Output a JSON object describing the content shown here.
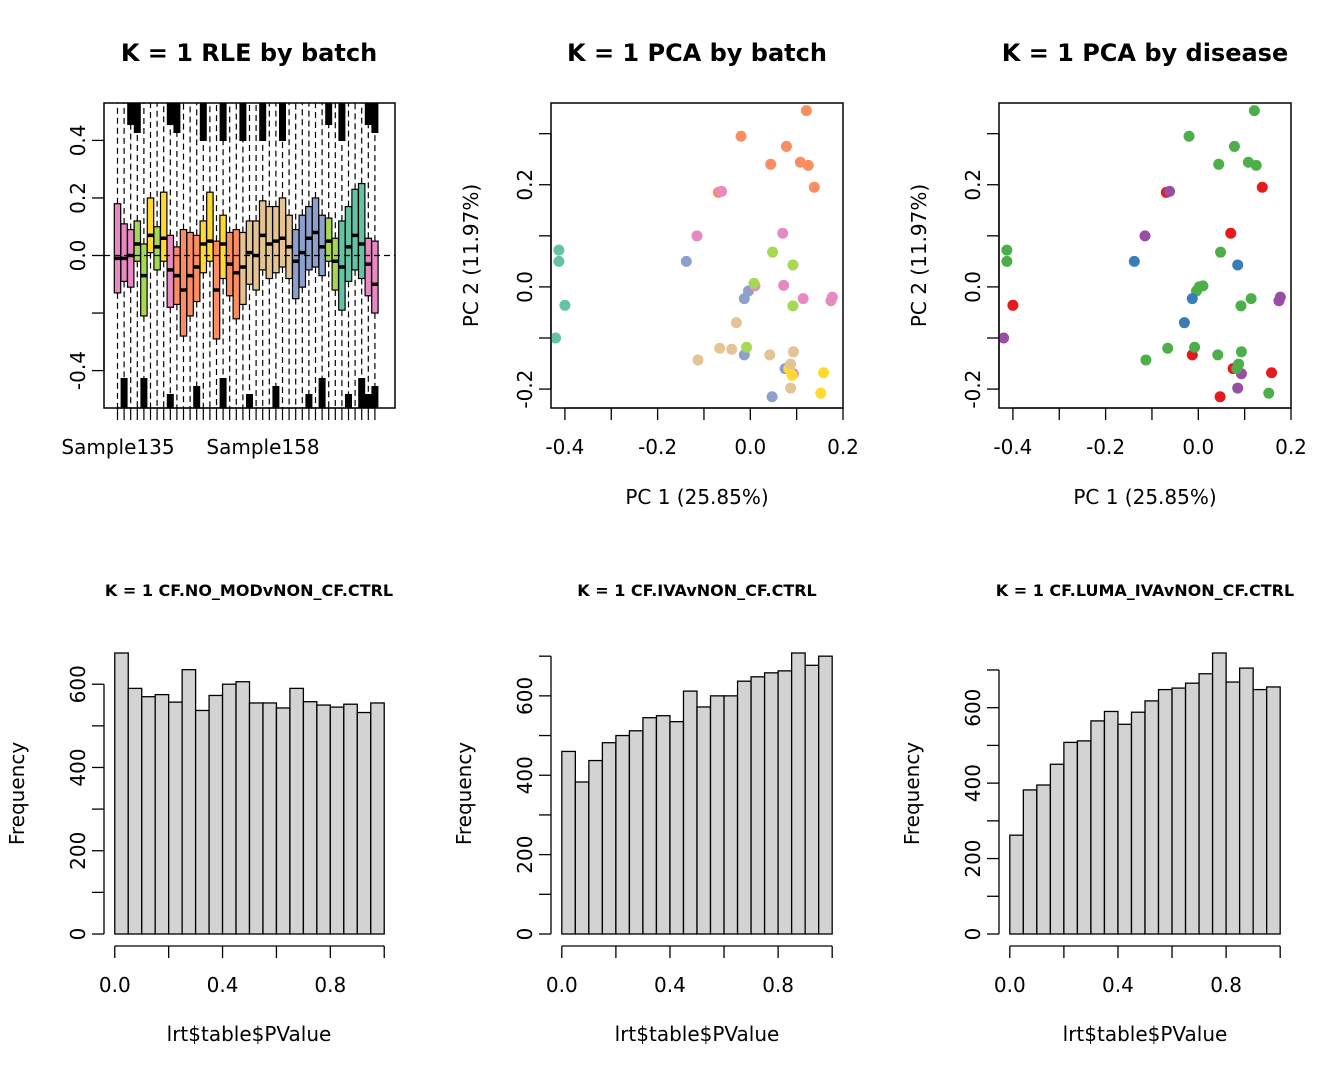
{
  "colors": {
    "set2": [
      "#66C2A5",
      "#FC8D62",
      "#8DA0CB",
      "#E78AC3",
      "#A6D854",
      "#FFD92F",
      "#E5C494"
    ],
    "set1": [
      "#E41A1C",
      "#377EB8",
      "#4DAF4A",
      "#984EA3"
    ],
    "hist_fill": "#D3D3D3"
  },
  "chart_data": [
    {
      "type": "boxplot",
      "title": "K = 1 RLE by batch",
      "xlabel": "",
      "ylabel": "",
      "ylim": [
        -0.53,
        0.53
      ],
      "yticks": [
        -0.4,
        -0.2,
        0.0,
        0.2,
        0.4
      ],
      "ytick_labels": [
        "-0.4",
        "",
        "0.0",
        "0.2",
        "0.4"
      ],
      "xtick_labels": [
        "Sample135",
        "Sample158"
      ],
      "reference_line": 0,
      "outliers_clipped": true,
      "boxes": [
        {
          "batch": 3,
          "q1": -0.13,
          "median": -0.01,
          "q3": 0.18
        },
        {
          "batch": 3,
          "q1": -0.09,
          "median": -0.01,
          "q3": 0.11
        },
        {
          "batch": 3,
          "q1": -0.11,
          "median": 0.0,
          "q3": 0.09
        },
        {
          "batch": 4,
          "q1": -0.02,
          "median": 0.04,
          "q3": 0.12
        },
        {
          "batch": 4,
          "q1": -0.21,
          "median": -0.07,
          "q3": 0.04
        },
        {
          "batch": 5,
          "q1": 0.01,
          "median": 0.07,
          "q3": 0.2
        },
        {
          "batch": 4,
          "q1": -0.05,
          "median": 0.03,
          "q3": 0.1
        },
        {
          "batch": 5,
          "q1": -0.02,
          "median": 0.06,
          "q3": 0.22
        },
        {
          "batch": 3,
          "q1": -0.18,
          "median": -0.05,
          "q3": 0.07
        },
        {
          "batch": 1,
          "q1": -0.17,
          "median": -0.07,
          "q3": 0.03
        },
        {
          "batch": 1,
          "q1": -0.28,
          "median": -0.12,
          "q3": 0.09
        },
        {
          "batch": 1,
          "q1": -0.21,
          "median": -0.07,
          "q3": 0.08
        },
        {
          "batch": 1,
          "q1": -0.16,
          "median": -0.04,
          "q3": 0.07
        },
        {
          "batch": 5,
          "q1": -0.06,
          "median": 0.04,
          "q3": 0.12
        },
        {
          "batch": 5,
          "q1": -0.02,
          "median": 0.05,
          "q3": 0.22
        },
        {
          "batch": 1,
          "q1": -0.29,
          "median": -0.12,
          "q3": 0.05
        },
        {
          "batch": 5,
          "q1": -0.08,
          "median": 0.04,
          "q3": 0.14
        },
        {
          "batch": 1,
          "q1": -0.14,
          "median": -0.03,
          "q3": 0.08
        },
        {
          "batch": 1,
          "q1": -0.22,
          "median": -0.06,
          "q3": 0.09
        },
        {
          "batch": 6,
          "q1": -0.17,
          "median": -0.04,
          "q3": 0.08
        },
        {
          "batch": 6,
          "q1": -0.1,
          "median": 0.01,
          "q3": 0.12
        },
        {
          "batch": 6,
          "q1": -0.12,
          "median": 0.0,
          "q3": 0.12
        },
        {
          "batch": 6,
          "q1": -0.05,
          "median": 0.07,
          "q3": 0.19
        },
        {
          "batch": 6,
          "q1": -0.08,
          "median": 0.04,
          "q3": 0.17
        },
        {
          "batch": 6,
          "q1": -0.06,
          "median": 0.05,
          "q3": 0.17
        },
        {
          "batch": 6,
          "q1": -0.04,
          "median": 0.06,
          "q3": 0.2
        },
        {
          "batch": 6,
          "q1": -0.08,
          "median": 0.03,
          "q3": 0.14
        },
        {
          "batch": 2,
          "q1": -0.15,
          "median": -0.02,
          "q3": 0.09
        },
        {
          "batch": 2,
          "q1": -0.11,
          "median": 0.01,
          "q3": 0.14
        },
        {
          "batch": 2,
          "q1": -0.05,
          "median": 0.06,
          "q3": 0.17
        },
        {
          "batch": 2,
          "q1": -0.04,
          "median": 0.08,
          "q3": 0.2
        },
        {
          "batch": 2,
          "q1": -0.07,
          "median": 0.03,
          "q3": 0.14
        },
        {
          "batch": 4,
          "q1": -0.02,
          "median": 0.05,
          "q3": 0.13
        },
        {
          "batch": 4,
          "q1": -0.12,
          "median": -0.02,
          "q3": 0.06
        },
        {
          "batch": 0,
          "q1": -0.19,
          "median": -0.04,
          "q3": 0.12
        },
        {
          "batch": 0,
          "q1": -0.09,
          "median": 0.03,
          "q3": 0.17
        },
        {
          "batch": 0,
          "q1": -0.05,
          "median": 0.07,
          "q3": 0.23
        },
        {
          "batch": 0,
          "q1": -0.08,
          "median": 0.04,
          "q3": 0.25
        },
        {
          "batch": 3,
          "q1": -0.14,
          "median": -0.03,
          "q3": 0.06
        },
        {
          "batch": 3,
          "q1": -0.2,
          "median": -0.1,
          "q3": 0.05
        }
      ]
    },
    {
      "type": "scatter",
      "title": "K = 1 PCA by batch",
      "xlabel": "PC 1 (25.85%)",
      "ylabel": "PC 2 (11.97%)",
      "xlim": [
        -0.43,
        0.2
      ],
      "ylim": [
        -0.237,
        0.36
      ],
      "xticks": [
        -0.4,
        -0.3,
        -0.2,
        -0.1,
        0.0,
        0.1,
        0.2
      ],
      "xtick_labels": [
        "-0.4",
        "",
        "-0.2",
        "",
        "0.0",
        "",
        "0.2"
      ],
      "yticks": [
        -0.2,
        -0.1,
        0.0,
        0.1,
        0.2,
        0.3
      ],
      "ytick_labels": [
        "-0.2",
        "",
        "0.0",
        "",
        "0.2",
        ""
      ],
      "points": [
        {
          "x": -0.413,
          "y": 0.072,
          "batch": 0
        },
        {
          "x": -0.413,
          "y": 0.05,
          "batch": 0
        },
        {
          "x": -0.4,
          "y": -0.036,
          "batch": 0
        },
        {
          "x": -0.42,
          "y": -0.1,
          "batch": 0
        },
        {
          "x": -0.02,
          "y": 0.295,
          "batch": 1
        },
        {
          "x": 0.121,
          "y": 0.345,
          "batch": 1
        },
        {
          "x": 0.078,
          "y": 0.275,
          "batch": 1
        },
        {
          "x": 0.108,
          "y": 0.244,
          "batch": 1
        },
        {
          "x": 0.125,
          "y": 0.238,
          "batch": 1
        },
        {
          "x": 0.044,
          "y": 0.24,
          "batch": 1
        },
        {
          "x": 0.138,
          "y": 0.195,
          "batch": 1
        },
        {
          "x": -0.069,
          "y": 0.185,
          "batch": 1
        },
        {
          "x": -0.138,
          "y": 0.05,
          "batch": 2
        },
        {
          "x": -0.004,
          "y": -0.008,
          "batch": 2
        },
        {
          "x": -0.013,
          "y": -0.023,
          "batch": 2
        },
        {
          "x": -0.013,
          "y": -0.133,
          "batch": 2
        },
        {
          "x": 0.075,
          "y": -0.16,
          "batch": 2
        },
        {
          "x": 0.047,
          "y": -0.215,
          "batch": 2
        },
        {
          "x": -0.062,
          "y": 0.187,
          "batch": 3
        },
        {
          "x": -0.115,
          "y": 0.1,
          "batch": 3
        },
        {
          "x": 0.07,
          "y": 0.105,
          "batch": 3
        },
        {
          "x": 0.01,
          "y": 0.002,
          "batch": 3
        },
        {
          "x": 0.072,
          "y": 0.003,
          "batch": 3
        },
        {
          "x": 0.114,
          "y": -0.023,
          "batch": 3
        },
        {
          "x": 0.177,
          "y": -0.02,
          "batch": 3
        },
        {
          "x": 0.174,
          "y": -0.027,
          "batch": 3
        },
        {
          "x": 0.093,
          "y": -0.17,
          "batch": 3
        },
        {
          "x": 0.048,
          "y": 0.068,
          "batch": 4
        },
        {
          "x": 0.092,
          "y": 0.043,
          "batch": 4
        },
        {
          "x": 0.008,
          "y": 0.007,
          "batch": 4
        },
        {
          "x": 0.092,
          "y": -0.037,
          "batch": 4
        },
        {
          "x": -0.008,
          "y": -0.118,
          "batch": 4
        },
        {
          "x": 0.158,
          "y": -0.168,
          "batch": 5
        },
        {
          "x": 0.09,
          "y": -0.173,
          "batch": 5
        },
        {
          "x": 0.152,
          "y": -0.208,
          "batch": 5
        },
        {
          "x": 0.083,
          "y": -0.16,
          "batch": 5
        },
        {
          "x": -0.03,
          "y": -0.07,
          "batch": 6
        },
        {
          "x": -0.066,
          "y": -0.12,
          "batch": 6
        },
        {
          "x": -0.04,
          "y": -0.122,
          "batch": 6
        },
        {
          "x": -0.113,
          "y": -0.143,
          "batch": 6
        },
        {
          "x": 0.042,
          "y": -0.133,
          "batch": 6
        },
        {
          "x": 0.093,
          "y": -0.127,
          "batch": 6
        },
        {
          "x": 0.087,
          "y": -0.198,
          "batch": 6
        },
        {
          "x": 0.087,
          "y": -0.151,
          "batch": 6
        }
      ]
    },
    {
      "type": "scatter",
      "title": "K = 1 PCA by disease",
      "xlabel": "PC 1 (25.85%)",
      "ylabel": "PC 2 (11.97%)",
      "xlim": [
        -0.43,
        0.2
      ],
      "ylim": [
        -0.237,
        0.36
      ],
      "xticks": [
        -0.4,
        -0.3,
        -0.2,
        -0.1,
        0.0,
        0.1,
        0.2
      ],
      "xtick_labels": [
        "-0.4",
        "",
        "-0.2",
        "",
        "0.0",
        "",
        "0.2"
      ],
      "yticks": [
        -0.2,
        -0.1,
        0.0,
        0.1,
        0.2,
        0.3
      ],
      "ytick_labels": [
        "-0.2",
        "",
        "0.0",
        "",
        "0.2",
        ""
      ],
      "points": [
        {
          "x": -0.413,
          "y": 0.072,
          "group": 2
        },
        {
          "x": -0.413,
          "y": 0.05,
          "group": 2
        },
        {
          "x": -0.4,
          "y": -0.036,
          "group": 0
        },
        {
          "x": -0.42,
          "y": -0.1,
          "group": 3
        },
        {
          "x": -0.02,
          "y": 0.295,
          "group": 2
        },
        {
          "x": 0.121,
          "y": 0.345,
          "group": 2
        },
        {
          "x": 0.078,
          "y": 0.275,
          "group": 2
        },
        {
          "x": 0.108,
          "y": 0.244,
          "group": 2
        },
        {
          "x": 0.125,
          "y": 0.238,
          "group": 2
        },
        {
          "x": 0.044,
          "y": 0.24,
          "group": 2
        },
        {
          "x": 0.138,
          "y": 0.195,
          "group": 0
        },
        {
          "x": -0.069,
          "y": 0.185,
          "group": 0
        },
        {
          "x": -0.138,
          "y": 0.05,
          "group": 1
        },
        {
          "x": -0.004,
          "y": -0.008,
          "group": 2
        },
        {
          "x": -0.013,
          "y": -0.023,
          "group": 1
        },
        {
          "x": -0.013,
          "y": -0.133,
          "group": 0
        },
        {
          "x": 0.075,
          "y": -0.16,
          "group": 0
        },
        {
          "x": 0.047,
          "y": -0.215,
          "group": 0
        },
        {
          "x": -0.062,
          "y": 0.187,
          "group": 3
        },
        {
          "x": -0.115,
          "y": 0.1,
          "group": 3
        },
        {
          "x": 0.07,
          "y": 0.105,
          "group": 0
        },
        {
          "x": 0.01,
          "y": 0.002,
          "group": 2
        },
        {
          "x": 0.085,
          "y": 0.043,
          "group": 1
        },
        {
          "x": 0.114,
          "y": -0.023,
          "group": 2
        },
        {
          "x": 0.177,
          "y": -0.02,
          "group": 3
        },
        {
          "x": 0.174,
          "y": -0.027,
          "group": 3
        },
        {
          "x": 0.093,
          "y": -0.17,
          "group": 3
        },
        {
          "x": 0.048,
          "y": 0.068,
          "group": 2
        },
        {
          "x": 0.002,
          "y": 0.0,
          "group": 2
        },
        {
          "x": 0.092,
          "y": -0.037,
          "group": 2
        },
        {
          "x": -0.008,
          "y": -0.118,
          "group": 2
        },
        {
          "x": -0.03,
          "y": -0.07,
          "group": 1
        },
        {
          "x": 0.158,
          "y": -0.168,
          "group": 0
        },
        {
          "x": 0.152,
          "y": -0.208,
          "group": 2
        },
        {
          "x": 0.083,
          "y": -0.16,
          "group": 2
        },
        {
          "x": 0.085,
          "y": -0.198,
          "group": 3
        },
        {
          "x": -0.066,
          "y": -0.12,
          "group": 2
        },
        {
          "x": -0.113,
          "y": -0.143,
          "group": 2
        },
        {
          "x": 0.042,
          "y": -0.133,
          "group": 2
        },
        {
          "x": 0.093,
          "y": -0.127,
          "group": 2
        },
        {
          "x": 0.087,
          "y": -0.151,
          "group": 2
        }
      ]
    },
    {
      "type": "histogram",
      "title": "K = 1 CF.NO_MODvNON_CF.CTRL",
      "xlabel": "lrt$table$PValue",
      "ylabel": "Frequency",
      "bin_edges": [
        0.0,
        0.05,
        0.1,
        0.15,
        0.2,
        0.25,
        0.3,
        0.35,
        0.4,
        0.45,
        0.5,
        0.55,
        0.6,
        0.65,
        0.7,
        0.75,
        0.8,
        0.85,
        0.9,
        0.95,
        1.0
      ],
      "values": [
        675,
        590,
        570,
        575,
        557,
        635,
        537,
        573,
        600,
        606,
        555,
        555,
        543,
        590,
        558,
        550,
        545,
        552,
        532,
        555
      ],
      "xlim": [
        -0.04,
        1.04
      ],
      "xticks": [
        0.0,
        0.2,
        0.4,
        0.6,
        0.8,
        1.0
      ],
      "xtick_labels": [
        "0.0",
        "",
        "0.4",
        "",
        "0.8",
        ""
      ],
      "ylim": [
        0,
        675
      ],
      "yticks": [
        0,
        100,
        200,
        300,
        400,
        500,
        600
      ],
      "ytick_labels": [
        "0",
        "",
        "200",
        "",
        "400",
        "",
        "600"
      ]
    },
    {
      "type": "histogram",
      "title": "K = 1 CF.IVAvNON_CF.CTRL",
      "xlabel": "lrt$table$PValue",
      "ylabel": "Frequency",
      "bin_edges": [
        0.0,
        0.05,
        0.1,
        0.15,
        0.2,
        0.25,
        0.3,
        0.35,
        0.4,
        0.45,
        0.5,
        0.55,
        0.6,
        0.65,
        0.7,
        0.75,
        0.8,
        0.85,
        0.9,
        0.95,
        1.0
      ],
      "values": [
        460,
        383,
        437,
        482,
        500,
        512,
        545,
        550,
        535,
        612,
        572,
        600,
        600,
        637,
        648,
        658,
        663,
        708,
        677,
        700
      ],
      "xlim": [
        -0.04,
        1.04
      ],
      "xticks": [
        0.0,
        0.2,
        0.4,
        0.6,
        0.8,
        1.0
      ],
      "xtick_labels": [
        "0.0",
        "",
        "0.4",
        "",
        "0.8",
        ""
      ],
      "ylim": [
        0,
        708
      ],
      "yticks": [
        0,
        100,
        200,
        300,
        400,
        500,
        600,
        700
      ],
      "ytick_labels": [
        "0",
        "",
        "200",
        "",
        "400",
        "",
        "600",
        ""
      ]
    },
    {
      "type": "histogram",
      "title": "K = 1 CF.LUMA_IVAvNON_CF.CTRL",
      "xlabel": "lrt$table$PValue",
      "ylabel": "Frequency",
      "bin_edges": [
        0.0,
        0.05,
        0.1,
        0.15,
        0.2,
        0.25,
        0.3,
        0.35,
        0.4,
        0.45,
        0.5,
        0.55,
        0.6,
        0.65,
        0.7,
        0.75,
        0.8,
        0.85,
        0.9,
        0.95,
        1.0
      ],
      "values": [
        262,
        382,
        395,
        450,
        508,
        512,
        565,
        590,
        556,
        588,
        618,
        648,
        652,
        665,
        690,
        745,
        668,
        705,
        648,
        655
      ],
      "xlim": [
        -0.04,
        1.04
      ],
      "xticks": [
        0.0,
        0.2,
        0.4,
        0.6,
        0.8,
        1.0
      ],
      "xtick_labels": [
        "0.0",
        "",
        "0.4",
        "",
        "0.8",
        ""
      ],
      "ylim": [
        0,
        745
      ],
      "yticks": [
        0,
        100,
        200,
        300,
        400,
        500,
        600,
        700
      ],
      "ytick_labels": [
        "0",
        "",
        "200",
        "",
        "400",
        "",
        "600",
        ""
      ]
    }
  ]
}
